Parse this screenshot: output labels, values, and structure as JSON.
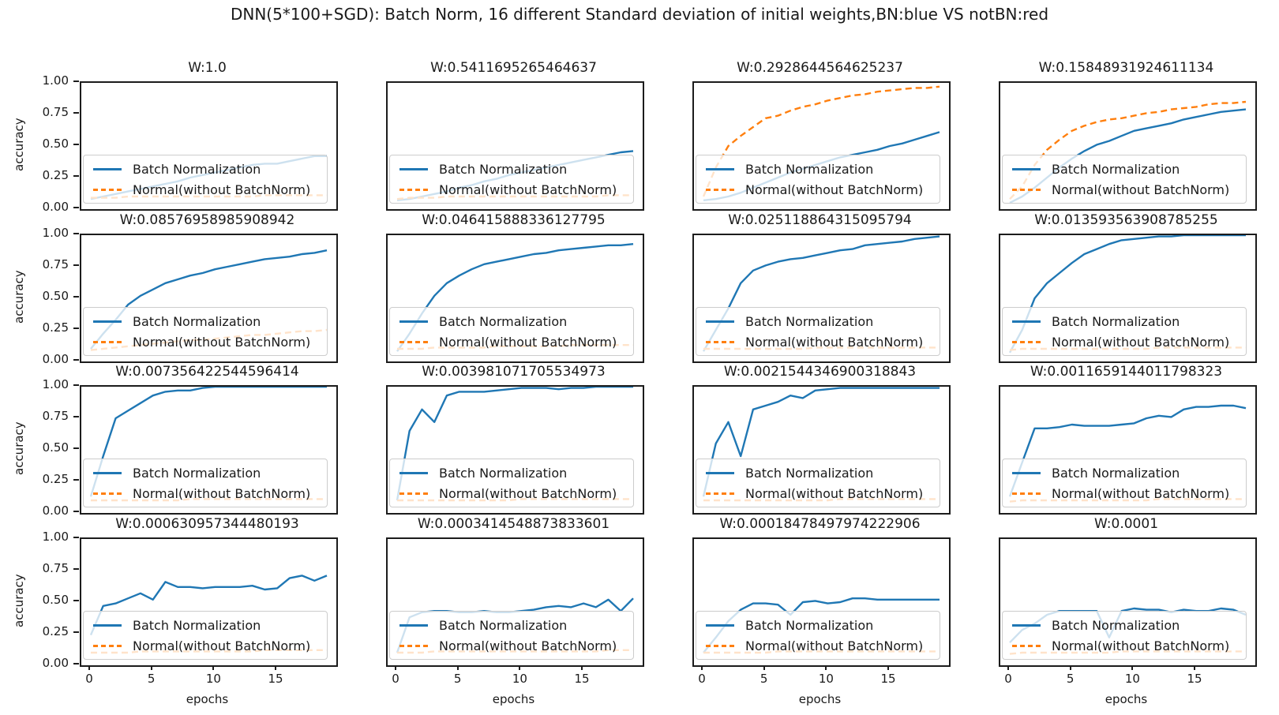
{
  "figure": {
    "title": "DNN(5*100+SGD): Batch Norm, 16 different Standard deviation of initial weights,BN:blue VS notBN:red",
    "xlabel": "epochs",
    "ylabel": "accuracy",
    "xticks": [
      0,
      5,
      10,
      15
    ],
    "yticks": [
      "0.00",
      "0.25",
      "0.50",
      "0.75",
      "1.00"
    ],
    "colors": {
      "batch_norm": "#1f77b4",
      "normal": "#ff7f0e",
      "spine": "#1c1c1c",
      "text": "#1a1a1a"
    }
  },
  "legend": {
    "batch_norm": "Batch Normalization",
    "normal": "Normal(without BatchNorm)"
  },
  "chart_data": {
    "type": "line",
    "grid_rows": 4,
    "grid_cols": 4,
    "x": [
      0,
      1,
      2,
      3,
      4,
      5,
      6,
      7,
      8,
      9,
      10,
      11,
      12,
      13,
      14,
      15,
      16,
      17,
      18,
      19
    ],
    "xlim": [
      0,
      19
    ],
    "ylim": [
      0.0,
      1.0
    ],
    "xlabel": "epochs",
    "ylabel": "accuracy",
    "legend_position": "lower-left",
    "series_meta": [
      {
        "key": "bn",
        "name": "Batch Normalization",
        "color": "#1f77b4",
        "style": "solid"
      },
      {
        "key": "normal",
        "name": "Normal(without BatchNorm)",
        "color": "#ff7f0e",
        "style": "dashed"
      }
    ],
    "subplots": [
      {
        "title": "W:1.0",
        "bn": [
          0.08,
          0.1,
          0.12,
          0.14,
          0.16,
          0.18,
          0.2,
          0.22,
          0.25,
          0.27,
          0.29,
          0.31,
          0.33,
          0.35,
          0.36,
          0.36,
          0.38,
          0.4,
          0.42,
          0.42
        ],
        "normal": [
          0.09,
          0.09,
          0.09,
          0.1,
          0.1,
          0.1,
          0.1,
          0.1,
          0.1,
          0.1,
          0.1,
          0.1,
          0.1,
          0.1,
          0.11,
          0.11,
          0.11,
          0.11,
          0.11,
          0.11
        ]
      },
      {
        "title": "W:0.5411695265464637",
        "bn": [
          0.07,
          0.08,
          0.1,
          0.12,
          0.14,
          0.17,
          0.19,
          0.22,
          0.24,
          0.27,
          0.29,
          0.31,
          0.33,
          0.35,
          0.37,
          0.39,
          0.41,
          0.43,
          0.45,
          0.46
        ],
        "normal": [
          0.08,
          0.09,
          0.09,
          0.09,
          0.1,
          0.1,
          0.1,
          0.1,
          0.1,
          0.1,
          0.1,
          0.1,
          0.1,
          0.1,
          0.1,
          0.1,
          0.1,
          0.11,
          0.11,
          0.11
        ]
      },
      {
        "title": "W:0.2928644564625237",
        "bn": [
          0.07,
          0.08,
          0.1,
          0.13,
          0.17,
          0.21,
          0.25,
          0.29,
          0.32,
          0.35,
          0.38,
          0.41,
          0.43,
          0.45,
          0.47,
          0.5,
          0.52,
          0.55,
          0.58,
          0.61
        ],
        "normal": [
          0.1,
          0.33,
          0.5,
          0.58,
          0.65,
          0.72,
          0.74,
          0.78,
          0.81,
          0.83,
          0.86,
          0.88,
          0.9,
          0.91,
          0.93,
          0.94,
          0.95,
          0.96,
          0.96,
          0.97
        ]
      },
      {
        "title": "W:0.15848931924611134",
        "bn": [
          0.05,
          0.1,
          0.17,
          0.25,
          0.33,
          0.4,
          0.46,
          0.51,
          0.54,
          0.58,
          0.62,
          0.64,
          0.66,
          0.68,
          0.71,
          0.73,
          0.75,
          0.77,
          0.78,
          0.79
        ],
        "normal": [
          0.08,
          0.18,
          0.35,
          0.47,
          0.55,
          0.62,
          0.66,
          0.69,
          0.71,
          0.72,
          0.74,
          0.76,
          0.77,
          0.79,
          0.8,
          0.81,
          0.83,
          0.84,
          0.84,
          0.85
        ]
      },
      {
        "title": "W:0.08576958985908942",
        "bn": [
          0.1,
          0.22,
          0.33,
          0.45,
          0.52,
          0.57,
          0.62,
          0.65,
          0.68,
          0.7,
          0.73,
          0.75,
          0.77,
          0.79,
          0.81,
          0.82,
          0.83,
          0.85,
          0.86,
          0.88
        ],
        "normal": [
          0.09,
          0.1,
          0.11,
          0.12,
          0.13,
          0.14,
          0.15,
          0.16,
          0.17,
          0.17,
          0.18,
          0.19,
          0.2,
          0.21,
          0.21,
          0.22,
          0.23,
          0.24,
          0.24,
          0.25
        ]
      },
      {
        "title": "W:0.046415888336127795",
        "bn": [
          0.08,
          0.22,
          0.38,
          0.52,
          0.62,
          0.68,
          0.73,
          0.77,
          0.79,
          0.81,
          0.83,
          0.85,
          0.86,
          0.88,
          0.89,
          0.9,
          0.91,
          0.92,
          0.92,
          0.93
        ],
        "normal": [
          0.1,
          0.1,
          0.1,
          0.11,
          0.11,
          0.11,
          0.11,
          0.11,
          0.12,
          0.12,
          0.12,
          0.12,
          0.12,
          0.12,
          0.13,
          0.13,
          0.13,
          0.13,
          0.13,
          0.13
        ]
      },
      {
        "title": "W:0.025118864315095794",
        "bn": [
          0.08,
          0.25,
          0.42,
          0.62,
          0.72,
          0.76,
          0.79,
          0.81,
          0.82,
          0.84,
          0.86,
          0.88,
          0.89,
          0.92,
          0.93,
          0.94,
          0.95,
          0.97,
          0.98,
          0.99
        ],
        "normal": [
          0.1,
          0.1,
          0.1,
          0.1,
          0.1,
          0.1,
          0.1,
          0.1,
          0.1,
          0.11,
          0.11,
          0.11,
          0.11,
          0.11,
          0.11,
          0.11,
          0.11,
          0.11,
          0.11,
          0.11
        ]
      },
      {
        "title": "W:0.013593563908785255",
        "bn": [
          0.07,
          0.25,
          0.5,
          0.62,
          0.7,
          0.78,
          0.85,
          0.89,
          0.93,
          0.96,
          0.97,
          0.98,
          0.99,
          0.99,
          1.0,
          1.0,
          1.0,
          1.0,
          1.0,
          1.0
        ],
        "normal": [
          0.09,
          0.1,
          0.1,
          0.1,
          0.1,
          0.1,
          0.1,
          0.1,
          0.1,
          0.1,
          0.1,
          0.1,
          0.11,
          0.11,
          0.11,
          0.11,
          0.11,
          0.11,
          0.11,
          0.11
        ]
      },
      {
        "title": "W:0.007356422544596414",
        "bn": [
          0.13,
          0.45,
          0.75,
          0.81,
          0.87,
          0.93,
          0.96,
          0.97,
          0.97,
          0.99,
          1.0,
          1.0,
          1.0,
          1.0,
          1.0,
          1.0,
          1.0,
          1.0,
          1.0,
          1.0
        ],
        "normal": [
          0.1,
          0.1,
          0.1,
          0.1,
          0.1,
          0.1,
          0.1,
          0.1,
          0.11,
          0.11,
          0.11,
          0.11,
          0.11,
          0.11,
          0.11,
          0.11,
          0.11,
          0.11,
          0.11,
          0.11
        ]
      },
      {
        "title": "W:0.003981071705534973",
        "bn": [
          0.1,
          0.65,
          0.82,
          0.72,
          0.93,
          0.96,
          0.96,
          0.96,
          0.97,
          0.98,
          0.99,
          0.99,
          0.99,
          0.98,
          0.99,
          0.99,
          1.0,
          1.0,
          1.0,
          1.0
        ],
        "normal": [
          0.1,
          0.1,
          0.1,
          0.1,
          0.1,
          0.1,
          0.1,
          0.1,
          0.1,
          0.1,
          0.11,
          0.11,
          0.11,
          0.11,
          0.11,
          0.11,
          0.11,
          0.11,
          0.11,
          0.11
        ]
      },
      {
        "title": "W:0.0021544346900318843",
        "bn": [
          0.13,
          0.55,
          0.72,
          0.45,
          0.82,
          0.85,
          0.88,
          0.93,
          0.91,
          0.97,
          0.98,
          0.99,
          0.99,
          0.99,
          0.99,
          0.99,
          0.99,
          0.99,
          0.99,
          0.99
        ],
        "normal": [
          0.1,
          0.1,
          0.1,
          0.1,
          0.1,
          0.1,
          0.1,
          0.1,
          0.1,
          0.1,
          0.1,
          0.11,
          0.11,
          0.11,
          0.11,
          0.11,
          0.11,
          0.11,
          0.11,
          0.11
        ]
      },
      {
        "title": "W:0.0011659144011798323",
        "bn": [
          0.13,
          0.4,
          0.67,
          0.67,
          0.68,
          0.7,
          0.69,
          0.69,
          0.69,
          0.7,
          0.71,
          0.75,
          0.77,
          0.76,
          0.82,
          0.84,
          0.84,
          0.85,
          0.85,
          0.83
        ],
        "normal": [
          0.09,
          0.1,
          0.1,
          0.1,
          0.1,
          0.1,
          0.1,
          0.1,
          0.1,
          0.1,
          0.1,
          0.1,
          0.11,
          0.11,
          0.11,
          0.11,
          0.11,
          0.11,
          0.11,
          0.11
        ]
      },
      {
        "title": "W:0.000630957344480193",
        "bn": [
          0.24,
          0.47,
          0.49,
          0.53,
          0.57,
          0.52,
          0.66,
          0.62,
          0.62,
          0.61,
          0.62,
          0.62,
          0.62,
          0.63,
          0.6,
          0.61,
          0.69,
          0.71,
          0.67,
          0.71
        ],
        "normal": [
          0.1,
          0.1,
          0.1,
          0.1,
          0.11,
          0.11,
          0.11,
          0.11,
          0.11,
          0.11,
          0.11,
          0.11,
          0.11,
          0.11,
          0.12,
          0.12,
          0.12,
          0.12,
          0.12,
          0.12
        ]
      },
      {
        "title": "W:0.0003414548873833601",
        "bn": [
          0.1,
          0.38,
          0.42,
          0.43,
          0.43,
          0.42,
          0.42,
          0.43,
          0.42,
          0.42,
          0.43,
          0.44,
          0.46,
          0.47,
          0.46,
          0.49,
          0.46,
          0.52,
          0.43,
          0.53
        ],
        "normal": [
          0.1,
          0.1,
          0.1,
          0.11,
          0.11,
          0.11,
          0.11,
          0.11,
          0.11,
          0.11,
          0.11,
          0.11,
          0.11,
          0.11,
          0.11,
          0.11,
          0.11,
          0.12,
          0.12,
          0.12
        ]
      },
      {
        "title": "W:0.00018478497974222906",
        "bn": [
          0.1,
          0.22,
          0.35,
          0.44,
          0.49,
          0.49,
          0.48,
          0.4,
          0.5,
          0.51,
          0.49,
          0.5,
          0.53,
          0.53,
          0.52,
          0.52,
          0.52,
          0.52,
          0.52,
          0.52
        ],
        "normal": [
          0.1,
          0.1,
          0.1,
          0.1,
          0.1,
          0.1,
          0.11,
          0.11,
          0.11,
          0.11,
          0.11,
          0.11,
          0.11,
          0.11,
          0.11,
          0.11,
          0.11,
          0.11,
          0.11,
          0.11
        ]
      },
      {
        "title": "W:0.0001",
        "bn": [
          0.18,
          0.28,
          0.33,
          0.4,
          0.43,
          0.43,
          0.43,
          0.43,
          0.22,
          0.43,
          0.45,
          0.44,
          0.44,
          0.42,
          0.44,
          0.43,
          0.43,
          0.45,
          0.44,
          0.4
        ],
        "normal": [
          0.09,
          0.1,
          0.1,
          0.1,
          0.1,
          0.1,
          0.1,
          0.1,
          0.1,
          0.11,
          0.11,
          0.11,
          0.11,
          0.11,
          0.11,
          0.11,
          0.11,
          0.11,
          0.11,
          0.11
        ]
      }
    ]
  }
}
